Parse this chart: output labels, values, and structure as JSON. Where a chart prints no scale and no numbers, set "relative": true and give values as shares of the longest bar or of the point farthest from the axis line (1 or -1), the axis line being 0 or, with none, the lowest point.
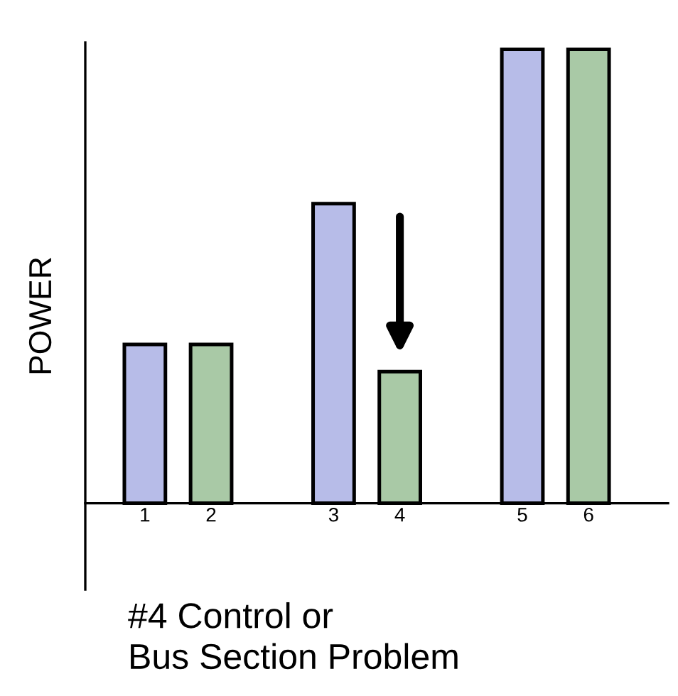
{
  "chart_data": {
    "type": "bar",
    "relative": true,
    "xlabel": "#4 Control or\nBus Section Problem",
    "ylabel": "POWER",
    "categories": [
      "1",
      "2",
      "3",
      "4",
      "5",
      "6"
    ],
    "values": [
      0.35,
      0.35,
      0.66,
      0.29,
      1,
      1
    ],
    "colors": [
      "#b7bce8",
      "#a9c9a6",
      "#b7bce8",
      "#a9c9a6",
      "#b7bce8",
      "#a9c9a6"
    ],
    "grid": false,
    "legend": false
  }
}
